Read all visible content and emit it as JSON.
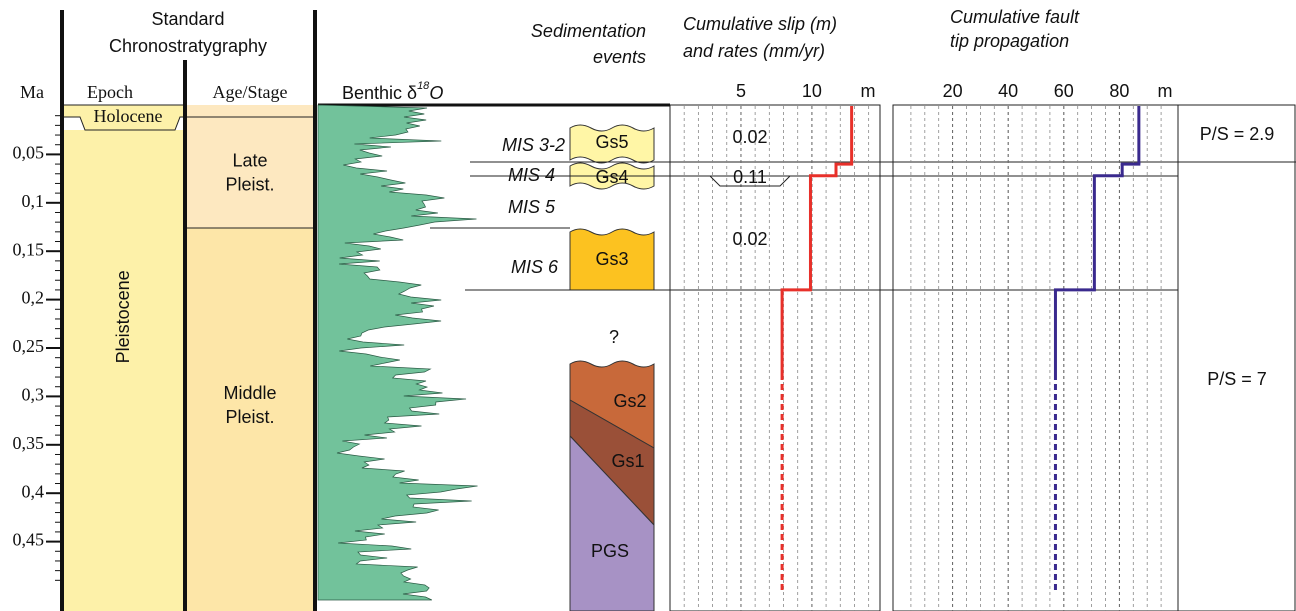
{
  "header": {
    "chrono": [
      "Standard",
      "Chronostratygraphy"
    ],
    "ma": "Ma",
    "epoch": "Epoch",
    "age_stage": "Age/Stage",
    "benthic": "Benthic δ",
    "benthic_sup": "18",
    "benthic_o": "O",
    "sedimentation": [
      "Sedimentation",
      "events"
    ],
    "slip": [
      "Cumulative slip (m)",
      "and rates (mm/yr)"
    ],
    "propagation": [
      "Cumulative fault",
      "tip propagation"
    ]
  },
  "age_axis": {
    "lim": [
      0,
      0.5
    ],
    "ticks": [
      {
        "value": 0.05,
        "label": "0,05"
      },
      {
        "value": 0.1,
        "label": "0,1"
      },
      {
        "value": 0.15,
        "label": "0,15"
      },
      {
        "value": 0.2,
        "label": "0,2"
      },
      {
        "value": 0.25,
        "label": "0,25"
      },
      {
        "value": 0.3,
        "label": "0,3"
      },
      {
        "value": 0.35,
        "label": "0,35"
      },
      {
        "value": 0.4,
        "label": "0,4"
      },
      {
        "value": 0.45,
        "label": "0,45"
      }
    ]
  },
  "epochs": [
    {
      "label": "Holocene",
      "from": 0,
      "to": 0.0117
    },
    {
      "label": "Pleistocene",
      "from": 0.0117,
      "to": 0.5
    }
  ],
  "stages": [
    {
      "label": [
        "Late",
        "Pleist."
      ],
      "from": 0.0117,
      "to": 0.126
    },
    {
      "label": [
        "Middle",
        "Pleist."
      ],
      "from": 0.126,
      "to": 0.5
    }
  ],
  "mis": [
    "MIS 3-2",
    "MIS 4",
    "MIS 5",
    "MIS 6"
  ],
  "sediments": [
    "Gs5",
    "Gs4",
    "Gs3",
    "?",
    "Gs2",
    "Gs1",
    "PGS"
  ],
  "slip": {
    "lim": [
      0,
      14.8
    ],
    "ticks": [
      5,
      10
    ],
    "unit": "m",
    "boundaries": [
      0.19,
      0.072,
      0.06
    ],
    "values": [
      7.9,
      9.9,
      11.7,
      12.8
    ],
    "dashed_below": 0.28,
    "rates": [
      "0.02",
      "0.11",
      "0.02"
    ]
  },
  "propagation": {
    "lim": [
      0,
      100
    ],
    "ticks": [
      20,
      40,
      60,
      80
    ],
    "unit": "m",
    "boundaries": [
      0.19,
      0.072,
      0.06
    ],
    "values": [
      57,
      71,
      81,
      87
    ],
    "dashed_below": 0.28,
    "ps": [
      "P/S = 2.9",
      "P/S = 7"
    ]
  }
}
